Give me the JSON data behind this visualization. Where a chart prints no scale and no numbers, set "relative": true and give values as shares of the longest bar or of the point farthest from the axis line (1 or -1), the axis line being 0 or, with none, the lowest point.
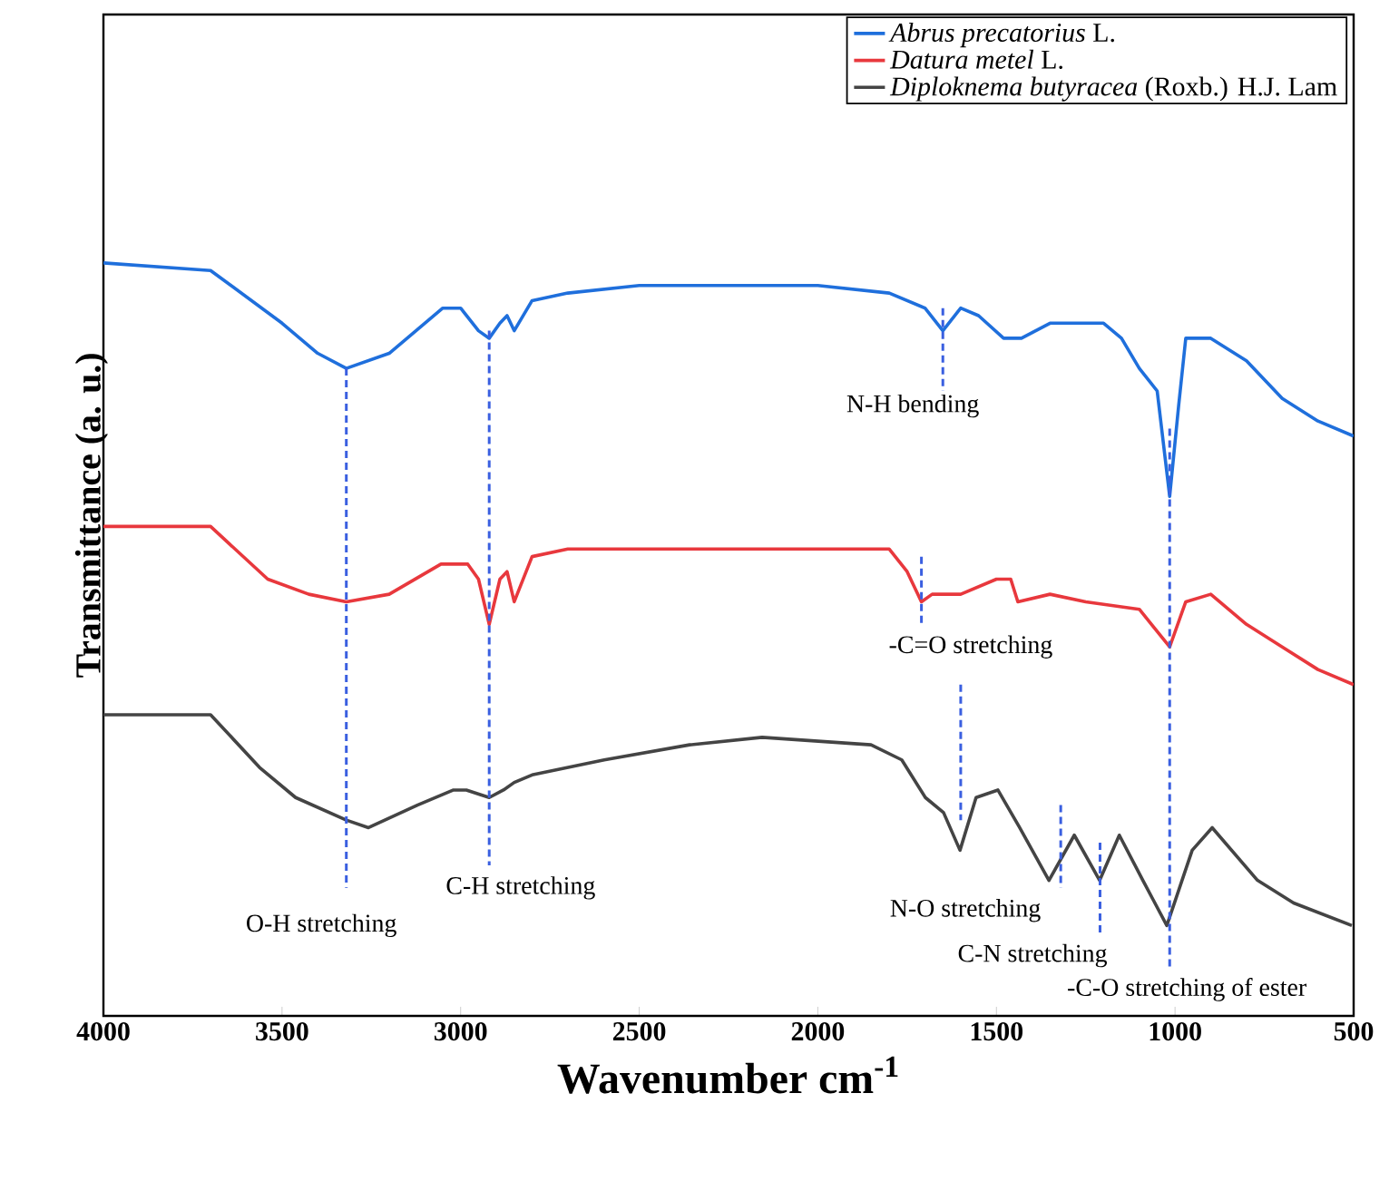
{
  "chart_data": {
    "type": "line",
    "relative": true,
    "xlabel": "Wavenumber cm$^{-1}$",
    "ylabel": "Transmittance (a. u.)",
    "xlim": [
      4000,
      500
    ],
    "xticks": [
      4000,
      3500,
      3000,
      2500,
      2000,
      1500,
      1000,
      500
    ],
    "tick_labels": "x",
    "legend": "top right",
    "grid": false,
    "series": [
      {
        "name": "*Abrus precatorius* L.",
        "color": "#1f6fdc",
        "x": [
          4000,
          3700,
          3500,
          3400,
          3320,
          3200,
          3050,
          3000,
          2950,
          2920,
          2890,
          2870,
          2850,
          2800,
          2700,
          2500,
          2000,
          1800,
          1700,
          1650,
          1600,
          1550,
          1480,
          1430,
          1350,
          1200,
          1150,
          1100,
          1050,
          1015,
          990,
          970,
          900,
          800,
          700,
          600,
          500
        ],
        "values": [
          1.0,
          0.99,
          0.92,
          0.88,
          0.86,
          0.88,
          0.94,
          0.94,
          0.91,
          0.9,
          0.92,
          0.93,
          0.91,
          0.95,
          0.96,
          0.97,
          0.97,
          0.96,
          0.94,
          0.91,
          0.94,
          0.93,
          0.9,
          0.9,
          0.92,
          0.92,
          0.9,
          0.86,
          0.83,
          0.69,
          0.81,
          0.9,
          0.9,
          0.87,
          0.82,
          0.79,
          0.77
        ]
      },
      {
        "name": "*Datura metel* L.",
        "color": "#e8383d",
        "x": [
          4000,
          3700,
          3540,
          3425,
          3320,
          3200,
          3055,
          2980,
          2950,
          2920,
          2890,
          2870,
          2850,
          2800,
          2700,
          2258,
          1800,
          1750,
          1710,
          1680,
          1600,
          1500,
          1460,
          1440,
          1350,
          1250,
          1100,
          1015,
          970,
          900,
          800,
          700,
          600,
          500
        ],
        "values": [
          0.65,
          0.65,
          0.58,
          0.56,
          0.55,
          0.56,
          0.6,
          0.6,
          0.58,
          0.52,
          0.58,
          0.59,
          0.55,
          0.61,
          0.62,
          0.62,
          0.62,
          0.59,
          0.55,
          0.56,
          0.56,
          0.58,
          0.58,
          0.55,
          0.56,
          0.55,
          0.54,
          0.49,
          0.55,
          0.56,
          0.52,
          0.49,
          0.46,
          0.44
        ]
      },
      {
        "name": "*Diploknema butyracea* (Roxb.) H.J. Lam",
        "color": "#444444",
        "x": [
          4000,
          3700,
          3563,
          3462,
          3320,
          3258,
          3121,
          3020,
          2984,
          2920,
          2880,
          2850,
          2800,
          2598,
          2359,
          2156,
          1851,
          1765,
          1699,
          1648,
          1602,
          1557,
          1496,
          1435,
          1353,
          1282,
          1211,
          1156,
          1090,
          1023,
          952,
          896,
          769,
          668,
          505
        ],
        "values": [
          0.4,
          0.4,
          0.33,
          0.29,
          0.26,
          0.25,
          0.28,
          0.3,
          0.3,
          0.29,
          0.3,
          0.31,
          0.32,
          0.34,
          0.36,
          0.37,
          0.36,
          0.34,
          0.29,
          0.27,
          0.22,
          0.29,
          0.3,
          0.25,
          0.18,
          0.24,
          0.18,
          0.24,
          0.18,
          0.12,
          0.22,
          0.25,
          0.18,
          0.15,
          0.12
        ]
      },
      {
        "type": "line",
        "line_style": "dashed",
        "color": "#3a5fe0",
        "x": [
          3320,
          3320
        ],
        "values": [
          0.86,
          0.17
        ]
      },
      {
        "type": "line",
        "line_style": "dashed",
        "color": "#3a5fe0",
        "x": [
          2920,
          2920
        ],
        "values": [
          0.91,
          0.2
        ]
      },
      {
        "type": "line",
        "line_style": "dashed",
        "color": "#3a5fe0",
        "x": [
          1650,
          1650
        ],
        "values": [
          0.94,
          0.83
        ]
      },
      {
        "type": "line",
        "line_style": "dashed",
        "color": "#3a5fe0",
        "x": [
          1710,
          1710
        ],
        "values": [
          0.61,
          0.52
        ]
      },
      {
        "type": "line",
        "line_style": "dashed",
        "color": "#3a5fe0",
        "x": [
          1600,
          1600
        ],
        "values": [
          0.44,
          0.26
        ]
      },
      {
        "type": "line",
        "line_style": "dashed",
        "color": "#3a5fe0",
        "x": [
          1320,
          1320
        ],
        "values": [
          0.28,
          0.17
        ]
      },
      {
        "type": "line",
        "line_style": "dashed",
        "color": "#3a5fe0",
        "x": [
          1210,
          1210
        ],
        "values": [
          0.23,
          0.11
        ]
      },
      {
        "type": "line",
        "line_style": "dashed",
        "color": "#3a5fe0",
        "x": [
          1015,
          1015
        ],
        "values": [
          0.78,
          0.06
        ]
      }
    ],
    "annotations": [
      "N-H bending",
      "-C=O stretching",
      "O-H stretching",
      "C-H stretching",
      "N-O stretching",
      "C-N stretching",
      "-C-O stretching of ester"
    ]
  }
}
